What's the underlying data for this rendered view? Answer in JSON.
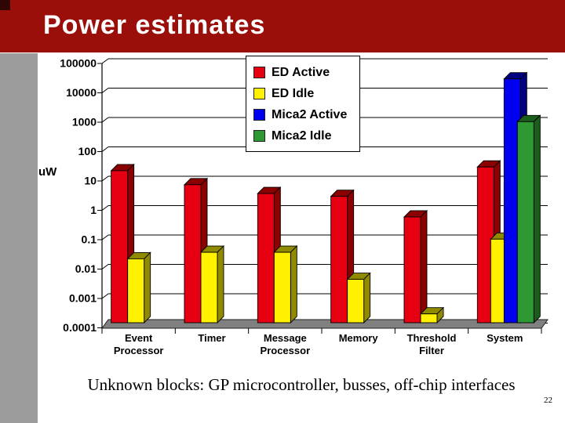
{
  "slide": {
    "title": "Power estimates",
    "footer_note": "Unknown blocks: GP microcontroller, busses, off-chip interfaces",
    "page_number": "22"
  },
  "theme": {
    "banner_color": "#9A0F0A",
    "corner_accent_color": "#300604",
    "side_strip_color": "#9C9C9C",
    "floor_color": "#808080",
    "background": "#FFFFFF"
  },
  "chart_data": {
    "type": "bar",
    "scale": "log",
    "title": "",
    "ylabel": "uW",
    "xlabel": "",
    "ylim": [
      0.0001,
      100000
    ],
    "yticks": [
      "100000",
      "10000",
      "1000",
      "100",
      "10",
      "1",
      "0.1",
      "0.01",
      "0.001",
      "0.0001"
    ],
    "grid": true,
    "legend_position": "top-center",
    "categories": [
      "Event Processor",
      "Timer",
      "Message Processor",
      "Memory",
      "Threshold Filter",
      "System"
    ],
    "series": [
      {
        "name": "ED Active",
        "color": "#E60012",
        "shade": "#8B0000",
        "values": [
          15,
          5,
          2.5,
          2,
          0.4,
          20
        ]
      },
      {
        "name": "ED Idle",
        "color": "#FFF100",
        "shade": "#8F8A00",
        "values": [
          0.015,
          0.025,
          0.025,
          0.003,
          0.0002,
          0.07
        ]
      },
      {
        "name": "Mica2 Active",
        "color": "#0000F0",
        "shade": "#000080",
        "values": [
          null,
          null,
          null,
          null,
          null,
          20000
        ]
      },
      {
        "name": "Mica2 Idle",
        "color": "#2E9932",
        "shade": "#1B5E1B",
        "values": [
          null,
          null,
          null,
          null,
          null,
          700
        ]
      }
    ]
  }
}
